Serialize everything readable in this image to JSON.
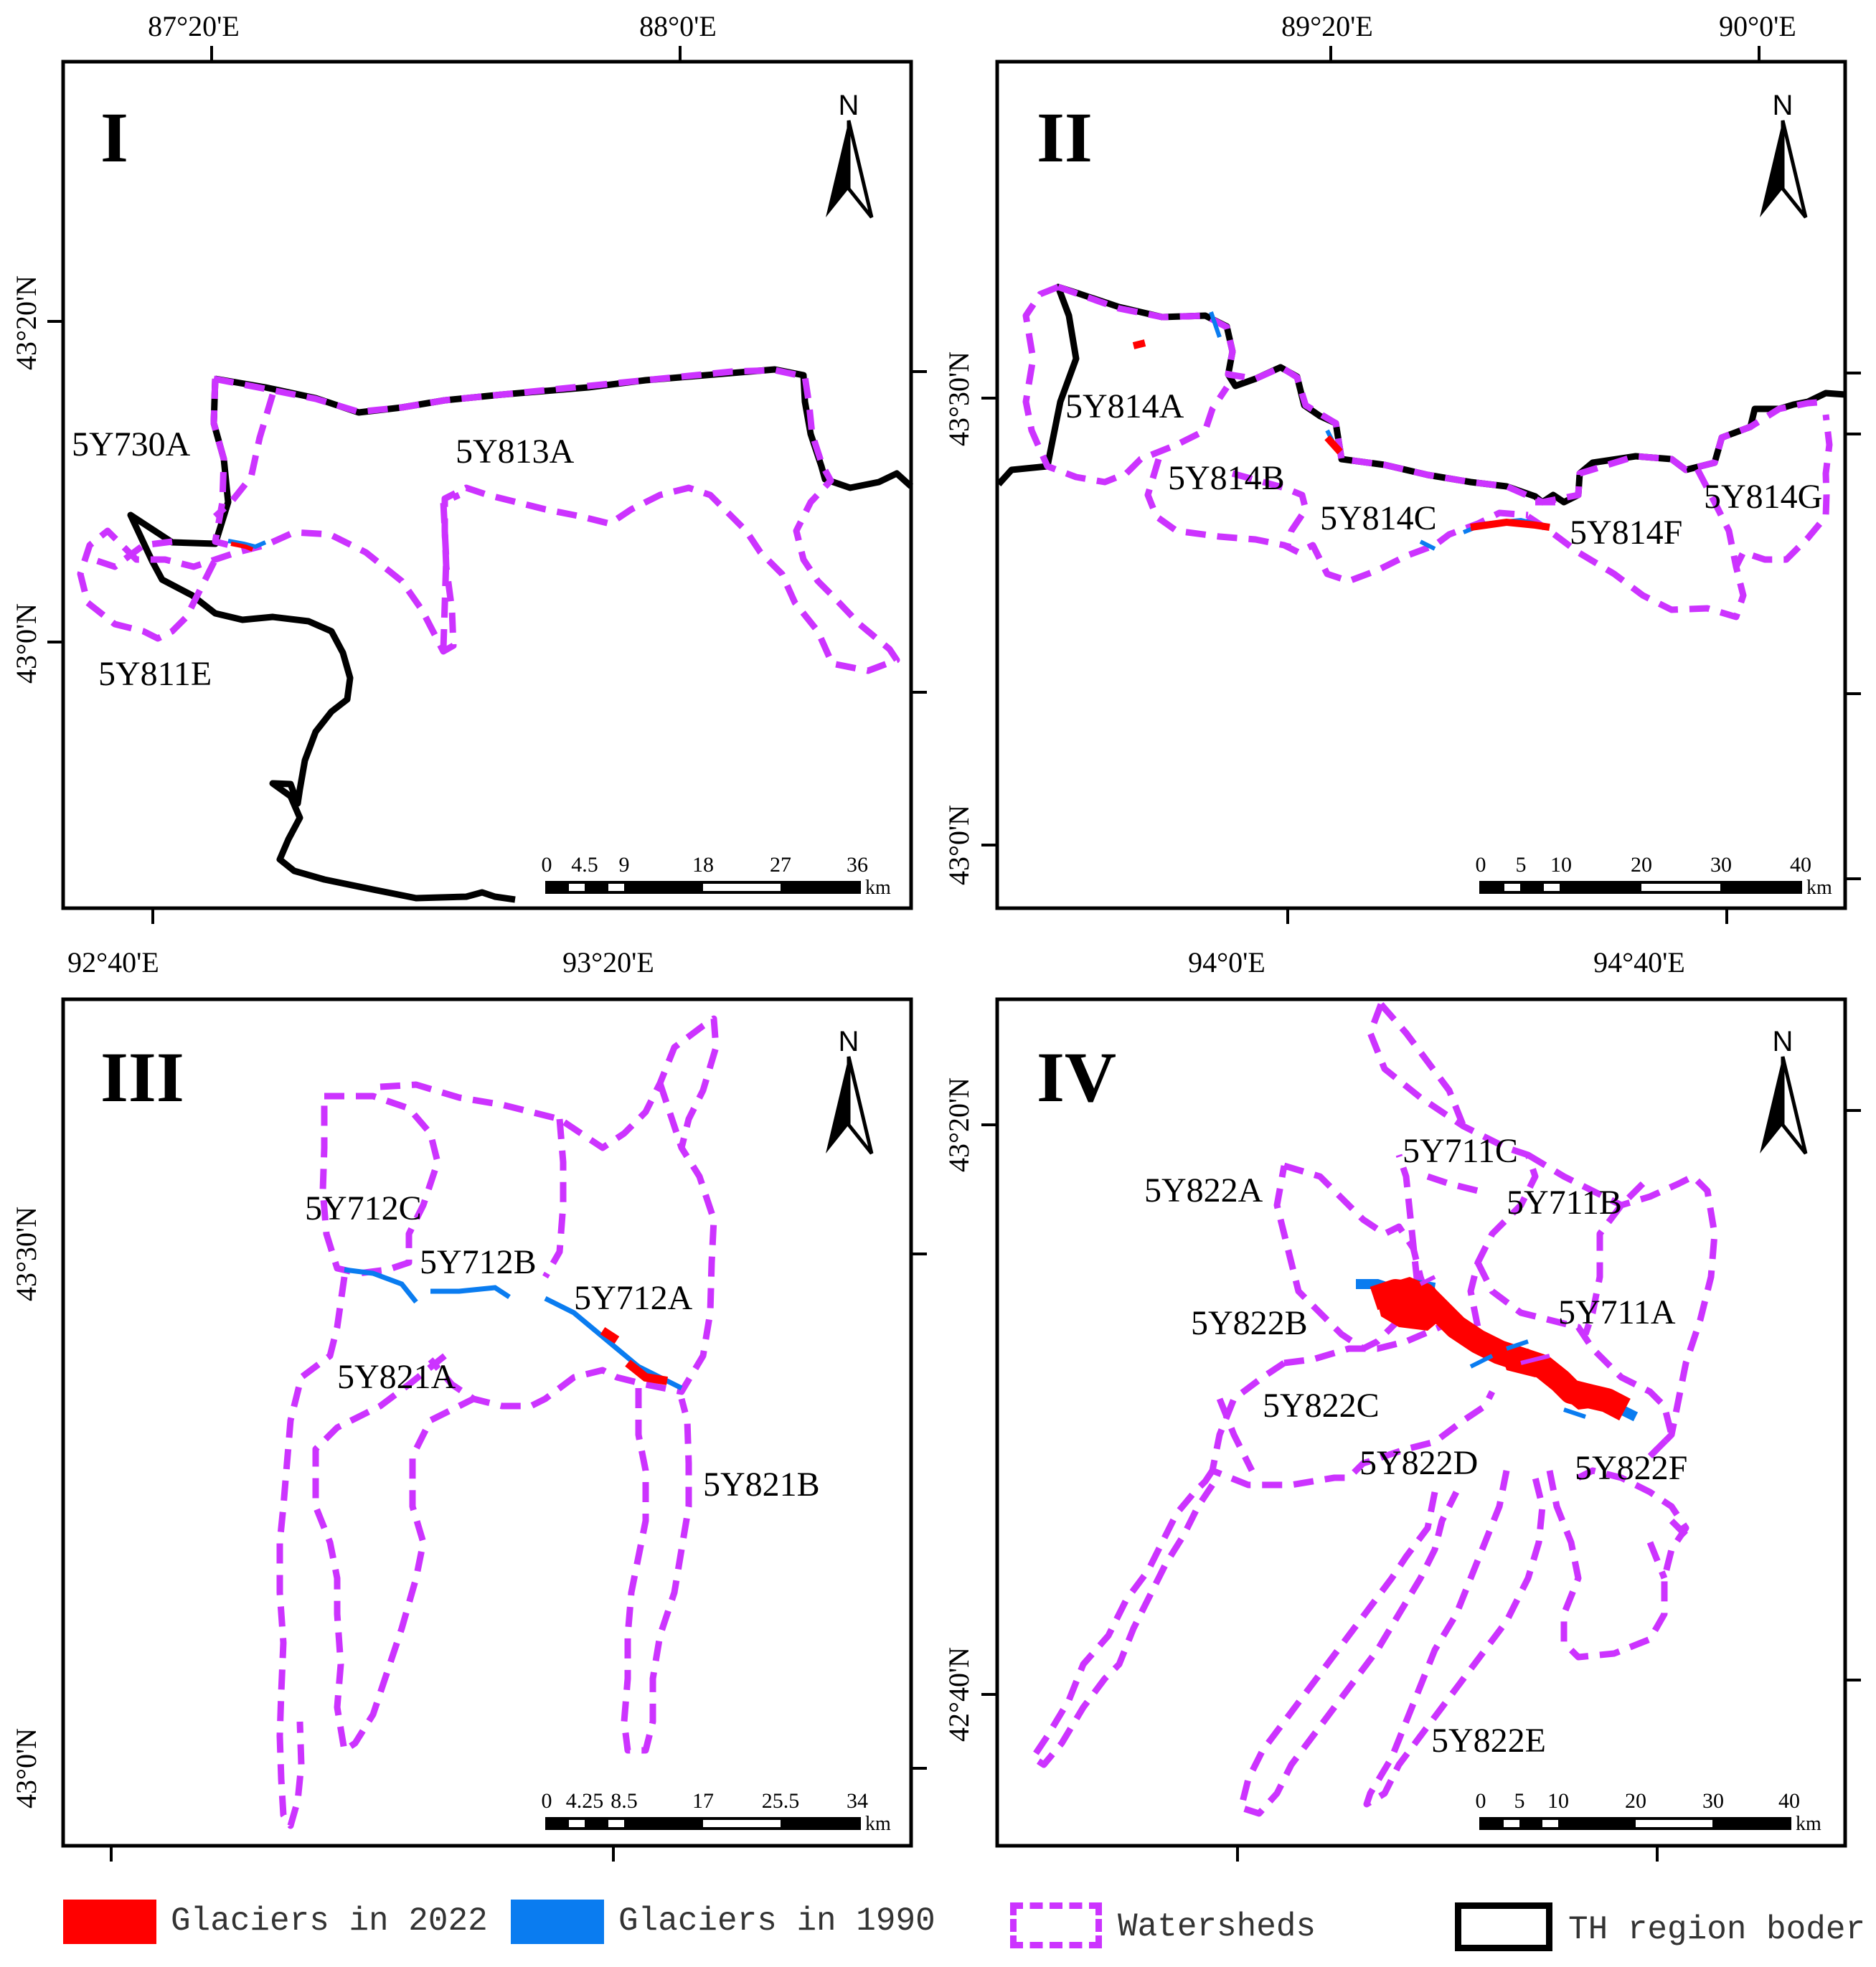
{
  "colors": {
    "glacier_2022": "#ff0000",
    "glacier_1990": "#0a7cf0",
    "watershed": "#cc33ff",
    "border": "#000000"
  },
  "panels": [
    {
      "numeral": "I",
      "lon_labels": [
        "87°20'E",
        "88°0'E"
      ],
      "lat_labels": [
        "43°20'N",
        "43°0'N"
      ],
      "scale_ticks": [
        "0",
        "4.5",
        "9",
        "18",
        "27",
        "36"
      ],
      "scale_unit": "km",
      "north": "N",
      "watersheds": [
        "5Y730A",
        "5Y813A",
        "5Y811E"
      ]
    },
    {
      "numeral": "II",
      "lon_labels": [
        "89°20'E",
        "90°0'E"
      ],
      "lat_labels": [
        "43°30'N",
        "43°0'N"
      ],
      "scale_ticks": [
        "0",
        "5",
        "10",
        "20",
        "30",
        "40"
      ],
      "scale_unit": "km",
      "north": "N",
      "watersheds": [
        "5Y814A",
        "5Y814B",
        "5Y814C",
        "5Y814F",
        "5Y814G"
      ]
    },
    {
      "numeral": "III",
      "lon_labels": [
        "92°40'E",
        "93°20'E"
      ],
      "lat_labels": [
        "43°30'N",
        "43°0'N"
      ],
      "scale_ticks": [
        "0",
        "4.25",
        "8.5",
        "17",
        "25.5",
        "34"
      ],
      "scale_unit": "km",
      "north": "N",
      "watersheds": [
        "5Y712C",
        "5Y712B",
        "5Y712A",
        "5Y821A",
        "5Y821B"
      ]
    },
    {
      "numeral": "IV",
      "lon_labels": [
        "94°0'E",
        "94°40'E"
      ],
      "lat_labels": [
        "43°20'N",
        "42°40'N"
      ],
      "scale_ticks": [
        "0",
        "5",
        "10",
        "20",
        "30",
        "40"
      ],
      "scale_unit": "km",
      "north": "N",
      "watersheds": [
        "5Y711C",
        "5Y822A",
        "5Y711B",
        "5Y822B",
        "5Y711A",
        "5Y822C",
        "5Y822D",
        "5Y822F",
        "5Y822E"
      ]
    }
  ],
  "legend": {
    "glaciers_2022": "Glaciers in 2022",
    "glaciers_1990": "Glaciers in 1990",
    "watersheds": "Watersheds",
    "border": "TH region boder"
  }
}
